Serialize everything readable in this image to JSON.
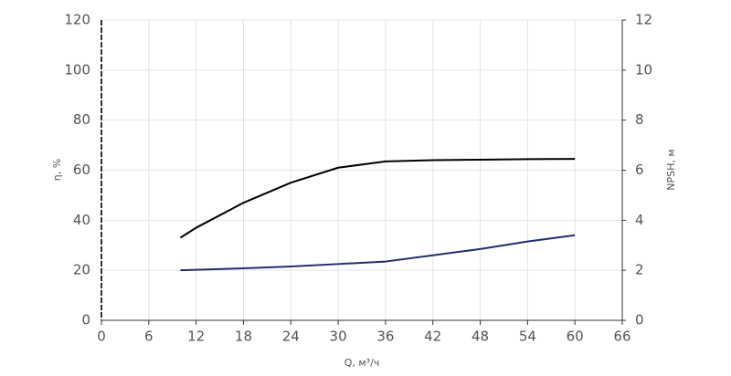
{
  "chart_data": {
    "type": "line",
    "x_label": "Q, м³/ч",
    "y_label": "η, %",
    "y2_label": "NPSH, м",
    "x": [
      10,
      12,
      18,
      24,
      30,
      36,
      42,
      48,
      54,
      60
    ],
    "series": [
      {
        "color": "#000000",
        "values": [
          33,
          37,
          47,
          55,
          61,
          63.5,
          64,
          64.2,
          64.4,
          64.5
        ]
      },
      {
        "color": "#1f2f6e",
        "axis": "y2",
        "values": [
          2.0,
          2.02,
          2.08,
          2.15,
          2.25,
          2.35,
          2.6,
          2.85,
          3.15,
          3.4
        ]
      }
    ],
    "xlim": [
      0,
      66
    ],
    "xticks": [
      0,
      6,
      12,
      18,
      24,
      30,
      36,
      42,
      48,
      54,
      60,
      66
    ],
    "ylim": [
      0,
      120
    ],
    "yticks": [
      0,
      20,
      40,
      60,
      80,
      100,
      120
    ],
    "y2lim": [
      0,
      12
    ],
    "y2ticks": [
      0,
      2,
      4,
      6,
      8,
      10,
      12
    ],
    "grid": true
  }
}
